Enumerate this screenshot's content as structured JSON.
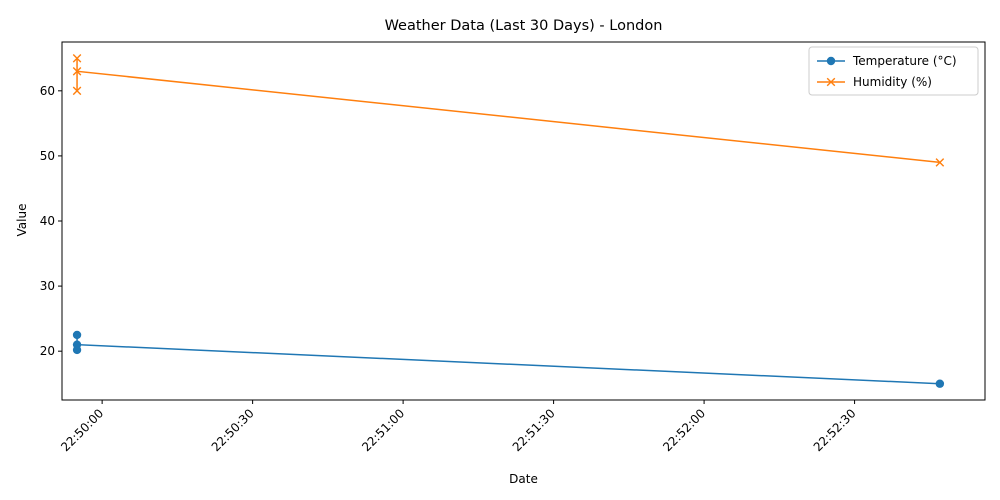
{
  "chart_data": {
    "type": "line",
    "title": "Weather Data (Last 30 Days) - London",
    "xlabel": "Date",
    "ylabel": "Value",
    "x_ticks": [
      "22:50:00",
      "22:50:30",
      "22:51:00",
      "22:51:30",
      "22:52:00",
      "22:52:30"
    ],
    "xlim": [
      "22:49:52",
      "22:52:56"
    ],
    "ylim": [
      12.5,
      67.5
    ],
    "y_ticks": [
      20,
      30,
      40,
      50,
      60
    ],
    "grid": false,
    "legend_position": "upper right",
    "series": [
      {
        "name": "Temperature (°C)",
        "color": "#1f77b4",
        "marker": "circle",
        "points": [
          {
            "x": "22:49:55",
            "y": 22.5
          },
          {
            "x": "22:49:55",
            "y": 20.2
          },
          {
            "x": "22:49:55",
            "y": 21.0
          },
          {
            "x": "22:52:47",
            "y": 15.0
          }
        ]
      },
      {
        "name": "Humidity (%)",
        "color": "#ff7f0e",
        "marker": "x",
        "points": [
          {
            "x": "22:49:55",
            "y": 65
          },
          {
            "x": "22:49:55",
            "y": 60
          },
          {
            "x": "22:49:55",
            "y": 63
          },
          {
            "x": "22:52:47",
            "y": 49
          }
        ]
      }
    ]
  }
}
